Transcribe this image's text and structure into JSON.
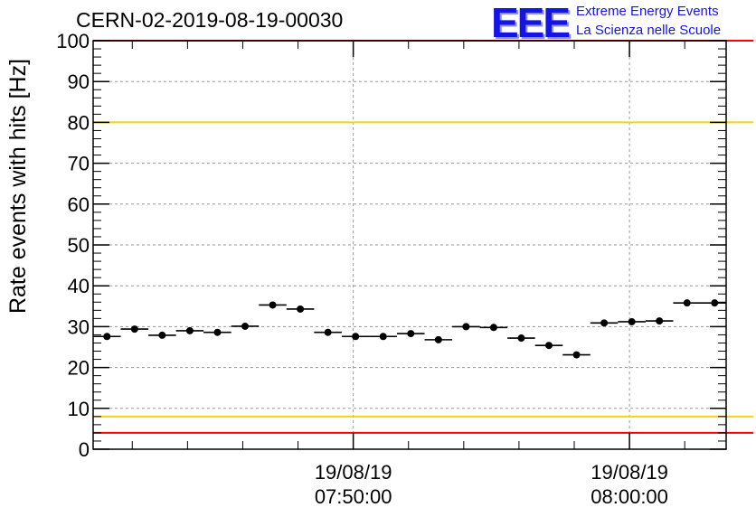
{
  "chart_data": {
    "type": "scatter",
    "title": "CERN-02-2019-08-19-00030",
    "ylabel": "Rate events with hits [Hz]",
    "xlabel": "",
    "ylim": [
      0,
      100
    ],
    "yticks": [
      "0",
      "10",
      "20",
      "30",
      "40",
      "50",
      "60",
      "70",
      "80",
      "90",
      "100"
    ],
    "xticks": [
      {
        "date": "19/08/19",
        "time": "07:50:00"
      },
      {
        "date": "19/08/19",
        "time": "08:00:00"
      }
    ],
    "grid": true,
    "reference_lines": [
      {
        "value": 100,
        "color": "#ff0000"
      },
      {
        "value": 80,
        "color": "#f2d21a"
      },
      {
        "value": 8,
        "color": "#f2d21a"
      },
      {
        "value": 4,
        "color": "#ff0000"
      }
    ],
    "series": [
      {
        "x": [
          "07:41:05",
          "07:42:05",
          "07:43:05",
          "07:44:05",
          "07:45:05",
          "07:46:05",
          "07:47:05",
          "07:48:05",
          "07:49:05",
          "07:50:05",
          "07:51:05",
          "07:52:05",
          "07:53:05",
          "07:54:05",
          "07:55:05",
          "07:56:05",
          "07:57:05",
          "07:58:05",
          "07:59:05",
          "08:00:05",
          "08:01:05",
          "08:02:05",
          "08:03:05"
        ],
        "values": [
          27.6,
          29.4,
          27.9,
          29.0,
          28.6,
          30.1,
          35.3,
          34.3,
          28.6,
          27.6,
          27.6,
          28.3,
          26.8,
          30.0,
          29.8,
          27.2,
          25.4,
          23.1,
          30.9,
          31.2,
          31.4,
          35.8,
          35.8
        ],
        "color": "#000000"
      }
    ]
  },
  "logo": {
    "letters": "EEE",
    "line1": "Extreme Energy Events",
    "line2": "La Scienza nelle Scuole"
  }
}
